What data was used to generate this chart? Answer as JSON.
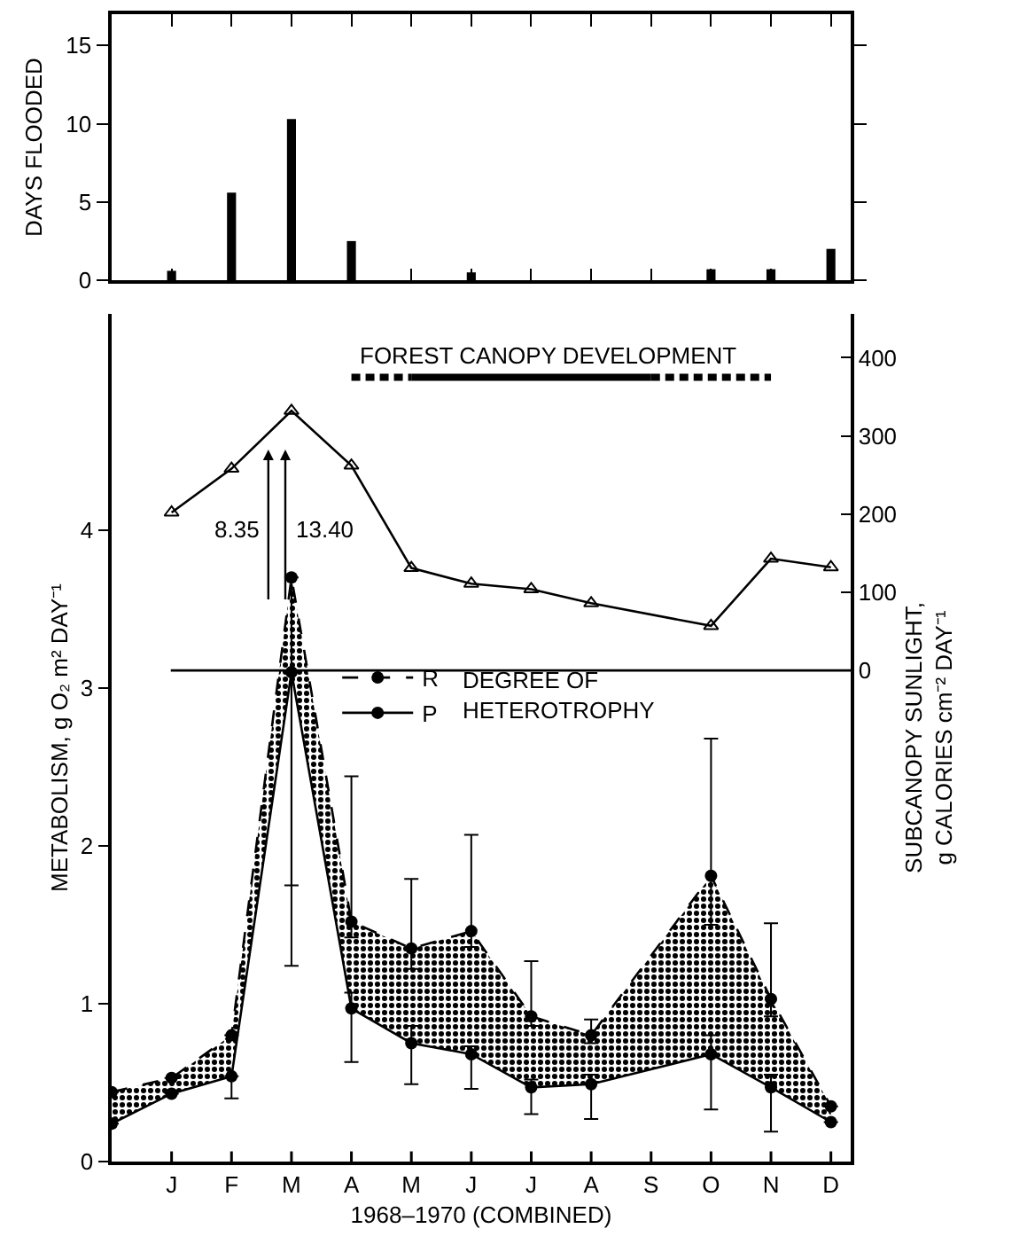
{
  "chart_data": [
    {
      "type": "bar",
      "ylabel": "DAYS FLOODED",
      "categories": [
        null,
        null,
        null,
        null,
        null,
        null,
        null,
        null,
        null,
        null,
        null,
        null,
        null
      ],
      "values": [
        null,
        0.6,
        5.6,
        10.3,
        2.5,
        null,
        0.5,
        null,
        null,
        null,
        0.7,
        0.7,
        2.0
      ],
      "color": "#000000",
      "ylim": [
        0,
        17
      ],
      "yticks": [
        0,
        5,
        10,
        15
      ],
      "tick_labels": "y",
      "grid": false
    },
    {
      "type": "line",
      "xlabel": "1968–1970 (COMBINED)",
      "ylabel": "METABOLISM, g O₂ m² DAY⁻¹",
      "y2label": "SUBCANOPY SUNLIGHT,\ng CALORIES cm⁻² DAY⁻¹",
      "categories": [
        null,
        "J",
        "F",
        "M",
        "A",
        "M",
        "J",
        "J",
        "A",
        "S",
        "O",
        "N",
        "D"
      ],
      "ylim": [
        0,
        5.37
      ],
      "yticks": [
        0,
        1,
        2,
        3,
        4
      ],
      "y2lim": [
        -628,
        456
      ],
      "y2ticks": [
        0,
        100,
        200,
        300,
        400
      ],
      "grid": false,
      "legend": "center",
      "marker": "circle",
      "series": [
        {
          "name": "R",
          "color": "#000000",
          "line_style": "dashed",
          "values": [
            0.44,
            0.53,
            0.8,
            3.7,
            1.52,
            1.35,
            1.46,
            0.92,
            0.8,
            null,
            1.81,
            1.03,
            0.35
          ],
          "lower": [
            0.24,
            0.43,
            0.54,
            3.1,
            0.97,
            0.75,
            0.68,
            0.47,
            0.49,
            null,
            0.68,
            0.47,
            0.25
          ],
          "upper": [
            0.44,
            0.53,
            0.8,
            3.7,
            1.52,
            1.35,
            1.46,
            0.92,
            0.8,
            null,
            1.81,
            1.03,
            0.35
          ],
          "errors": [
            null,
            null,
            null,
            [
              1.75,
              3.7
            ],
            [
              1.42,
              2.44
            ],
            [
              1.22,
              1.79
            ],
            [
              1.36,
              2.07
            ],
            [
              0.86,
              1.27
            ],
            [
              0.75,
              0.9
            ],
            null,
            [
              1.5,
              2.68
            ],
            [
              0.92,
              1.51
            ],
            null
          ]
        },
        {
          "name": "P",
          "color": "#000000",
          "line_style": "solid",
          "values": [
            0.24,
            0.43,
            0.54,
            3.1,
            0.97,
            0.75,
            0.68,
            0.47,
            0.49,
            null,
            0.68,
            0.47,
            0.25
          ],
          "errors": [
            null,
            null,
            [
              0.4,
              0.54
            ],
            [
              1.24,
              3.1
            ],
            [
              0.63,
              1.07
            ],
            [
              0.49,
              0.86
            ],
            [
              0.46,
              0.73
            ],
            [
              0.3,
              0.52
            ],
            [
              0.27,
              0.55
            ],
            null,
            [
              0.33,
              0.8
            ],
            [
              0.19,
              0.55
            ],
            null
          ]
        },
        {
          "color": "#000000",
          "axis": "y2",
          "marker": "triangle",
          "line_style": "solid",
          "values": [
            null,
            202,
            258,
            332,
            262,
            131,
            111,
            104,
            86,
            null,
            57,
            143,
            132
          ]
        },
        {
          "color": "#000000",
          "axis": "y2",
          "marker": "none",
          "line_style": "dashed",
          "values": [
            null,
            null,
            null,
            null,
            375,
            375,
            null,
            null,
            null,
            null,
            null,
            null,
            null
          ]
        },
        {
          "color": "#000000",
          "axis": "y2",
          "marker": "none",
          "line_style": "solid",
          "values": [
            null,
            null,
            null,
            null,
            null,
            375,
            375,
            375,
            375,
            375,
            null,
            null,
            null
          ]
        },
        {
          "color": "#000000",
          "axis": "y2",
          "marker": "none",
          "line_style": "dashed",
          "values": [
            null,
            null,
            null,
            null,
            null,
            null,
            null,
            null,
            null,
            375,
            375,
            375,
            null
          ]
        }
      ],
      "ref_lines": [
        {
          "axis": "y2",
          "value": 0
        }
      ],
      "annotations": [
        "FOREST CANOPY DEVELOPMENT",
        "8.35",
        "13.40",
        "DEGREE OF\nHETEROTROPHY"
      ]
    }
  ]
}
